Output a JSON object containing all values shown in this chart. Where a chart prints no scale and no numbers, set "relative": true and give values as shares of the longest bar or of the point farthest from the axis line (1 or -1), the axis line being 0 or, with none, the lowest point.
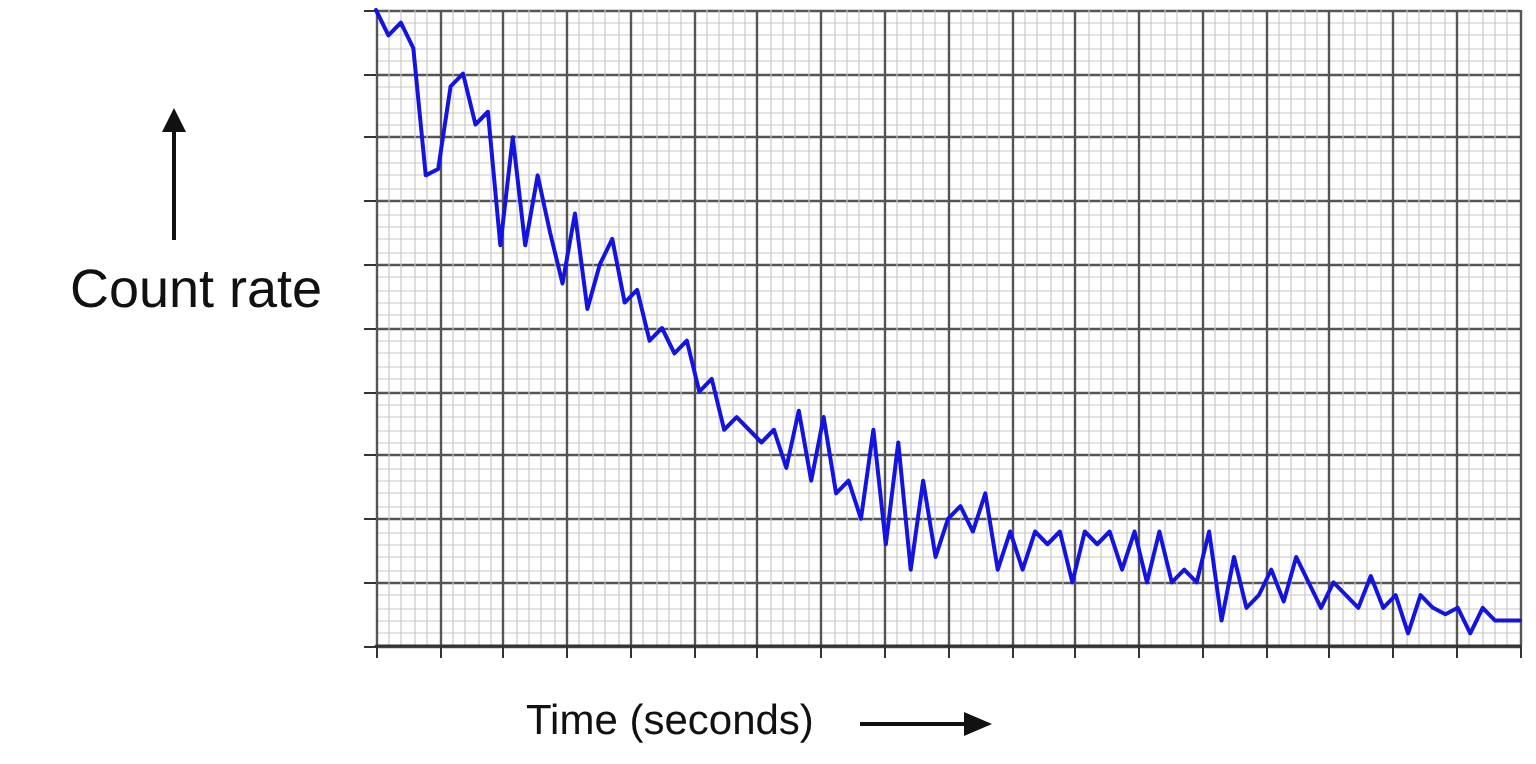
{
  "chart_data": {
    "type": "line",
    "xlabel": "Time (seconds)",
    "ylabel": "Count rate",
    "relative": true,
    "grid": true,
    "line_style": "solid",
    "categories": [
      null,
      null,
      null,
      null,
      null,
      null,
      null,
      null,
      null,
      null,
      null,
      null,
      null,
      null,
      null,
      null,
      null,
      null,
      null,
      null,
      null,
      null,
      null,
      null,
      null,
      null,
      null,
      null,
      null,
      null,
      null,
      null,
      null,
      null,
      null,
      null,
      null,
      null,
      null,
      null,
      null,
      null,
      null,
      null,
      null,
      null,
      null,
      null,
      null,
      null,
      null,
      null,
      null,
      null,
      null,
      null,
      null,
      null,
      null,
      null,
      null,
      null,
      null,
      null,
      null,
      null,
      null,
      null,
      null,
      null,
      null,
      null,
      null,
      null,
      null,
      null,
      null,
      null,
      null,
      null,
      null,
      null,
      null,
      null,
      null,
      null,
      null,
      null,
      null,
      null,
      null,
      null,
      null
    ],
    "series": [
      {
        "color": "#1414e0",
        "values": [
          1.0,
          0.96,
          0.98,
          0.94,
          0.74,
          0.75,
          0.88,
          0.9,
          0.82,
          0.84,
          0.63,
          0.8,
          0.63,
          0.74,
          0.65,
          0.57,
          0.68,
          0.53,
          0.6,
          0.64,
          0.54,
          0.56,
          0.48,
          0.5,
          0.46,
          0.48,
          0.4,
          0.42,
          0.34,
          0.36,
          0.34,
          0.32,
          0.34,
          0.28,
          0.37,
          0.26,
          0.36,
          0.24,
          0.26,
          0.2,
          0.34,
          0.16,
          0.32,
          0.12,
          0.26,
          0.14,
          0.2,
          0.22,
          0.18,
          0.24,
          0.12,
          0.18,
          0.12,
          0.18,
          0.16,
          0.18,
          0.1,
          0.18,
          0.16,
          0.18,
          0.12,
          0.18,
          0.1,
          0.18,
          0.1,
          0.12,
          0.1,
          0.18,
          0.04,
          0.14,
          0.06,
          0.08,
          0.12,
          0.07,
          0.14,
          0.1,
          0.06,
          0.1,
          0.08,
          0.06,
          0.11,
          0.06,
          0.08,
          0.02,
          0.08,
          0.06,
          0.05,
          0.06,
          0.02,
          0.06,
          0.04,
          0.04,
          0.04
        ]
      }
    ]
  }
}
